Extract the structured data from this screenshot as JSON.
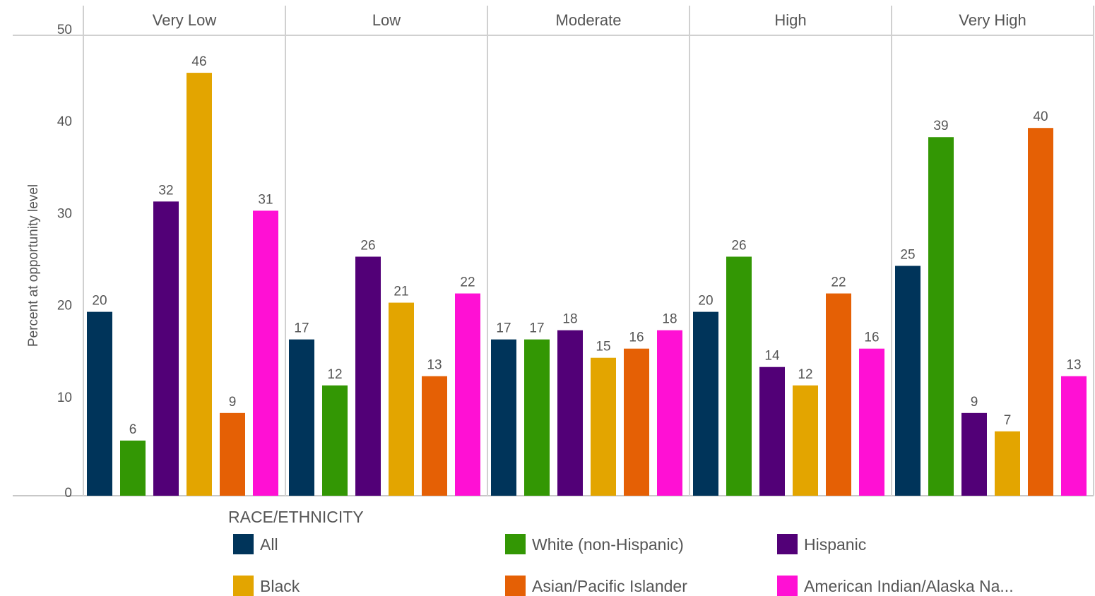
{
  "chart_data": {
    "type": "bar",
    "title": "",
    "xlabel": "",
    "ylabel": "Percent at opportunity level",
    "ylim": [
      0,
      50
    ],
    "yticks": [
      0,
      10,
      20,
      30,
      40,
      50
    ],
    "grid": false,
    "facets": [
      "Very Low",
      "Low",
      "Moderate",
      "High",
      "Very High"
    ],
    "legend": {
      "title": "RACE/ETHNICITY",
      "position": "bottom"
    },
    "series": [
      {
        "name": "All",
        "color": "#00345a",
        "values": [
          20,
          17,
          17,
          20,
          25
        ]
      },
      {
        "name": "White (non-Hispanic)",
        "color": "#339704",
        "values": [
          6,
          12,
          17,
          26,
          39
        ]
      },
      {
        "name": "Hispanic",
        "color": "#520077",
        "values": [
          32,
          26,
          18,
          14,
          9
        ]
      },
      {
        "name": "Black",
        "color": "#e3a500",
        "values": [
          46,
          21,
          15,
          12,
          7
        ]
      },
      {
        "name": "Asian/Pacific Islander",
        "color": "#e56005",
        "values": [
          9,
          13,
          16,
          22,
          40
        ]
      },
      {
        "name": "American Indian/Alaska Na...",
        "color": "#ff10d4",
        "values": [
          31,
          22,
          18,
          16,
          13
        ]
      }
    ]
  }
}
